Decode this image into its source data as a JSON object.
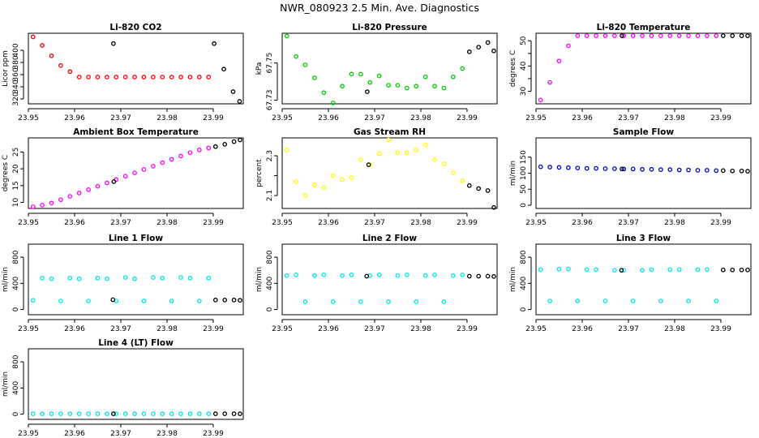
{
  "figure_title": "NWR_080923  2.5 Min. Ave. Diagnostics",
  "chart_data": [
    {
      "type": "scatter",
      "title": "Li-820 CO2",
      "ylabel": "Licor ppm",
      "xlim": [
        23.95,
        23.9965
      ],
      "ylim": [
        312,
        428
      ],
      "xticks": [
        23.95,
        23.96,
        23.97,
        23.98,
        23.99
      ],
      "yticks": [
        320,
        340,
        360,
        380,
        400
      ],
      "series": [
        {
          "name": "red",
          "color": "#ff0000",
          "x": [
            23.951,
            23.953,
            23.955,
            23.957,
            23.959,
            23.961,
            23.963,
            23.965,
            23.967,
            23.969,
            23.971,
            23.973,
            23.975,
            23.977,
            23.979,
            23.981,
            23.983,
            23.985,
            23.987,
            23.989
          ],
          "y": [
            422,
            408,
            391,
            375,
            365,
            356,
            356,
            356,
            356,
            356,
            356,
            356,
            356,
            356,
            356,
            356,
            356,
            356,
            356,
            356
          ]
        },
        {
          "name": "black",
          "color": "#000000",
          "x": [
            23.9684,
            23.9902,
            23.9923,
            23.9943,
            23.9957
          ],
          "y": [
            411,
            411,
            369,
            332,
            316
          ]
        }
      ]
    },
    {
      "type": "scatter",
      "title": "Li-820 Pressure",
      "ylabel": "kPa",
      "xlim": [
        23.95,
        23.9965
      ],
      "ylim": [
        67.728,
        67.766
      ],
      "xticks": [
        23.95,
        23.96,
        23.97,
        23.98,
        23.99
      ],
      "yticks": [
        67.73,
        67.75
      ],
      "yticklabels": [
        "67.73",
        "67.75"
      ],
      "series": [
        {
          "name": "green",
          "color": "#00cc00",
          "x": [
            23.951,
            23.953,
            23.955,
            23.957,
            23.959,
            23.961,
            23.963,
            23.965,
            23.967,
            23.969,
            23.971,
            23.973,
            23.975,
            23.977,
            23.979,
            23.981,
            23.983,
            23.985,
            23.987,
            23.989
          ],
          "y": [
            67.7645,
            67.7535,
            67.749,
            67.742,
            67.734,
            67.7285,
            67.7375,
            67.744,
            67.744,
            67.7395,
            67.743,
            67.738,
            67.738,
            67.7365,
            67.7375,
            67.7425,
            67.7375,
            67.7365,
            67.7425,
            67.747
          ]
        },
        {
          "name": "black",
          "color": "#000000",
          "x": [
            23.9684,
            23.9905,
            23.9925,
            23.9945,
            23.9958
          ],
          "y": [
            67.7345,
            67.756,
            67.7585,
            67.761,
            67.7565
          ]
        }
      ]
    },
    {
      "type": "scatter",
      "title": "Li-820 Temperature",
      "ylabel": "degrees C",
      "xlim": [
        23.95,
        23.9965
      ],
      "ylim": [
        25,
        53
      ],
      "xticks": [
        23.95,
        23.96,
        23.97,
        23.98,
        23.99
      ],
      "yticks": [
        30,
        35,
        40,
        45,
        50
      ],
      "yticklabels": [
        "30",
        "",
        "40",
        "",
        "50"
      ],
      "series": [
        {
          "name": "magenta",
          "color": "#ff00ff",
          "x": [
            23.951,
            23.953,
            23.955,
            23.957,
            23.959,
            23.961,
            23.963,
            23.965,
            23.967,
            23.969,
            23.971,
            23.973,
            23.975,
            23.977,
            23.979,
            23.981,
            23.983,
            23.985,
            23.987,
            23.989
          ],
          "y": [
            26.5,
            33.5,
            42,
            48,
            52,
            52,
            52,
            52,
            52,
            52,
            52,
            52,
            52,
            52,
            52,
            52,
            52,
            52,
            52,
            52
          ]
        },
        {
          "name": "black",
          "color": "#000000",
          "x": [
            23.9686,
            23.9905,
            23.9925,
            23.9945,
            23.9958
          ],
          "y": [
            52,
            52,
            52,
            52,
            52
          ]
        }
      ]
    },
    {
      "type": "scatter",
      "title": "Ambient Box Temperature",
      "ylabel": "degrees C",
      "xlim": [
        23.95,
        23.9965
      ],
      "ylim": [
        8.2,
        29.2
      ],
      "xticks": [
        23.95,
        23.96,
        23.97,
        23.98,
        23.99
      ],
      "yticks": [
        10,
        15,
        20,
        25
      ],
      "series": [
        {
          "name": "magenta",
          "color": "#ff00ff",
          "x": [
            23.951,
            23.953,
            23.955,
            23.957,
            23.959,
            23.961,
            23.963,
            23.965,
            23.967,
            23.969,
            23.971,
            23.973,
            23.975,
            23.977,
            23.979,
            23.981,
            23.983,
            23.985,
            23.987,
            23.989
          ],
          "y": [
            8.7,
            9.2,
            9.8,
            10.8,
            11.8,
            12.8,
            13.8,
            14.8,
            15.8,
            16.8,
            17.8,
            18.8,
            19.8,
            20.8,
            21.8,
            22.8,
            23.8,
            24.8,
            25.6,
            26.2
          ]
        },
        {
          "name": "black",
          "color": "#000000",
          "x": [
            23.9685,
            23.9905,
            23.9925,
            23.9945,
            23.9958
          ],
          "y": [
            16.2,
            26.6,
            27.3,
            28.1,
            28.6
          ]
        }
      ]
    },
    {
      "type": "scatter",
      "title": "Gas Stream RH",
      "ylabel": "percent",
      "xlim": [
        23.95,
        23.9965
      ],
      "ylim": [
        2.035,
        2.39
      ],
      "xticks": [
        23.95,
        23.96,
        23.97,
        23.98,
        23.99
      ],
      "yticks": [
        2.1,
        2.2,
        2.3
      ],
      "yticklabels": [
        "2.1",
        "",
        "2.3"
      ],
      "series": [
        {
          "name": "yellow",
          "color": "#ffff00",
          "x": [
            23.951,
            23.953,
            23.955,
            23.957,
            23.959,
            23.961,
            23.963,
            23.965,
            23.967,
            23.969,
            23.971,
            23.973,
            23.975,
            23.977,
            23.979,
            23.981,
            23.983,
            23.985,
            23.987,
            23.989
          ],
          "y": [
            2.33,
            2.17,
            2.1,
            2.155,
            2.14,
            2.2,
            2.18,
            2.19,
            2.28,
            2.255,
            2.31,
            2.38,
            2.315,
            2.315,
            2.33,
            2.355,
            2.28,
            2.26,
            2.215,
            2.175
          ]
        },
        {
          "name": "black",
          "color": "#000000",
          "x": [
            23.9687,
            23.9905,
            23.9925,
            23.9945,
            23.9958
          ],
          "y": [
            2.255,
            2.15,
            2.135,
            2.125,
            2.04
          ]
        }
      ]
    },
    {
      "type": "scatter",
      "title": "Sample Flow",
      "ylabel": "ml/min",
      "xlim": [
        23.95,
        23.9965
      ],
      "ylim": [
        -10,
        210
      ],
      "xticks": [
        23.95,
        23.96,
        23.97,
        23.98,
        23.99
      ],
      "yticks": [
        0,
        50,
        100,
        150
      ],
      "series": [
        {
          "name": "blue",
          "color": "#0000cc",
          "x": [
            23.951,
            23.953,
            23.955,
            23.957,
            23.959,
            23.961,
            23.963,
            23.965,
            23.967,
            23.969,
            23.971,
            23.973,
            23.975,
            23.977,
            23.979,
            23.981,
            23.983,
            23.985,
            23.987,
            23.989
          ],
          "y": [
            120,
            119,
            118,
            117,
            116,
            115,
            115,
            114,
            114,
            113,
            113,
            112,
            112,
            111,
            111,
            110,
            110,
            109,
            109,
            108
          ]
        },
        {
          "name": "black",
          "color": "#000000",
          "x": [
            23.9686,
            23.9905,
            23.9925,
            23.9945,
            23.9958
          ],
          "y": [
            113,
            108,
            107,
            107,
            106
          ]
        }
      ]
    },
    {
      "type": "scatter",
      "title": "Line 1 Flow",
      "ylabel": "ml/min",
      "xlim": [
        23.95,
        23.9965
      ],
      "ylim": [
        -80,
        1000
      ],
      "xticks": [
        23.95,
        23.96,
        23.97,
        23.98,
        23.99
      ],
      "yticks": [
        0,
        400,
        800
      ],
      "series": [
        {
          "name": "cyan",
          "color": "#00e5e5",
          "x": [
            23.951,
            23.953,
            23.955,
            23.957,
            23.959,
            23.961,
            23.963,
            23.965,
            23.967,
            23.969,
            23.971,
            23.973,
            23.975,
            23.977,
            23.979,
            23.981,
            23.983,
            23.985,
            23.987,
            23.989
          ],
          "y": [
            140,
            480,
            470,
            130,
            480,
            470,
            130,
            480,
            470,
            130,
            490,
            470,
            130,
            490,
            480,
            130,
            490,
            480,
            130,
            480
          ]
        },
        {
          "name": "black",
          "color": "#000000",
          "x": [
            23.9683,
            23.9905,
            23.9925,
            23.9945,
            23.9958
          ],
          "y": [
            150,
            145,
            145,
            145,
            140
          ]
        }
      ]
    },
    {
      "type": "scatter",
      "title": "Line 2 Flow",
      "ylabel": "ml/min",
      "xlim": [
        23.95,
        23.9965
      ],
      "ylim": [
        -80,
        1000
      ],
      "xticks": [
        23.95,
        23.96,
        23.97,
        23.98,
        23.99
      ],
      "yticks": [
        0,
        400,
        800
      ],
      "series": [
        {
          "name": "cyan",
          "color": "#00e5e5",
          "x": [
            23.951,
            23.953,
            23.955,
            23.957,
            23.959,
            23.961,
            23.963,
            23.965,
            23.967,
            23.969,
            23.971,
            23.973,
            23.975,
            23.977,
            23.979,
            23.981,
            23.983,
            23.985,
            23.987,
            23.989
          ],
          "y": [
            520,
            530,
            120,
            520,
            530,
            120,
            520,
            530,
            120,
            520,
            530,
            120,
            520,
            530,
            120,
            520,
            530,
            120,
            520,
            530
          ]
        },
        {
          "name": "black",
          "color": "#000000",
          "x": [
            23.9683,
            23.9905,
            23.9925,
            23.9945,
            23.9958
          ],
          "y": [
            510,
            510,
            510,
            510,
            505
          ]
        }
      ]
    },
    {
      "type": "scatter",
      "title": "Line 3 Flow",
      "ylabel": "ml/min",
      "xlim": [
        23.95,
        23.9965
      ],
      "ylim": [
        -80,
        1000
      ],
      "xticks": [
        23.95,
        23.96,
        23.97,
        23.98,
        23.99
      ],
      "yticks": [
        0,
        400,
        800
      ],
      "series": [
        {
          "name": "cyan",
          "color": "#00e5e5",
          "x": [
            23.951,
            23.953,
            23.955,
            23.957,
            23.959,
            23.961,
            23.963,
            23.965,
            23.967,
            23.969,
            23.971,
            23.973,
            23.975,
            23.977,
            23.979,
            23.981,
            23.983,
            23.985,
            23.987,
            23.989
          ],
          "y": [
            610,
            130,
            620,
            620,
            130,
            610,
            610,
            130,
            600,
            600,
            130,
            600,
            610,
            130,
            610,
            610,
            130,
            610,
            610,
            130
          ]
        },
        {
          "name": "black",
          "color": "#000000",
          "x": [
            23.9685,
            23.9905,
            23.9925,
            23.9945,
            23.9958
          ],
          "y": [
            600,
            605,
            605,
            605,
            605
          ]
        }
      ]
    },
    {
      "type": "scatter",
      "title": "Line 4 (LT) Flow",
      "ylabel": "ml/min",
      "xlim": [
        23.95,
        23.9965
      ],
      "ylim": [
        -80,
        1000
      ],
      "xticks": [
        23.95,
        23.96,
        23.97,
        23.98,
        23.99
      ],
      "yticks": [
        0,
        400,
        800
      ],
      "series": [
        {
          "name": "cyan",
          "color": "#00e5e5",
          "x": [
            23.951,
            23.953,
            23.955,
            23.957,
            23.959,
            23.961,
            23.963,
            23.965,
            23.967,
            23.969,
            23.971,
            23.973,
            23.975,
            23.977,
            23.979,
            23.981,
            23.983,
            23.985,
            23.987,
            23.989
          ],
          "y": [
            5,
            5,
            5,
            5,
            5,
            5,
            5,
            5,
            5,
            5,
            5,
            5,
            5,
            5,
            5,
            5,
            5,
            5,
            5,
            5
          ]
        },
        {
          "name": "black",
          "color": "#000000",
          "x": [
            23.9684,
            23.9905,
            23.9925,
            23.9945,
            23.9958
          ],
          "y": [
            5,
            5,
            5,
            5,
            5
          ]
        }
      ]
    }
  ]
}
